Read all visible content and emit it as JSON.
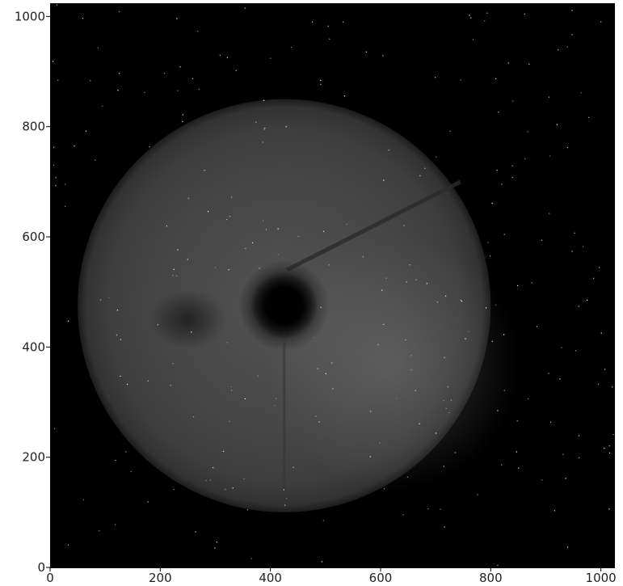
{
  "chart_data": {
    "type": "heatmap",
    "title": "",
    "xlabel": "",
    "ylabel": "",
    "xlim": [
      0,
      1024
    ],
    "ylim": [
      0,
      1024
    ],
    "xticks": [
      0,
      200,
      400,
      600,
      800,
      1000
    ],
    "yticks": [
      0,
      200,
      400,
      600,
      800,
      1000
    ],
    "xtick_labels": [
      "0",
      "200",
      "400",
      "600",
      "800",
      "1000"
    ],
    "ytick_labels": [
      "0",
      "200",
      "400",
      "600",
      "800",
      "1000"
    ],
    "colormap": "gray",
    "grid": false,
    "features": {
      "ring_center": [
        425,
        475
      ],
      "ring_outer_radius": 375,
      "ring_inner_radius": 45,
      "dark_blob_center": [
        250,
        450
      ],
      "diagonal_streak": [
        [
          430,
          540
        ],
        [
          745,
          700
        ]
      ],
      "vertical_streak_x": 425
    },
    "colors": {
      "background": "#000000",
      "ring": "#4a4a4a",
      "bright_region": "#6a6a6a",
      "center_hole": "#020202"
    }
  }
}
